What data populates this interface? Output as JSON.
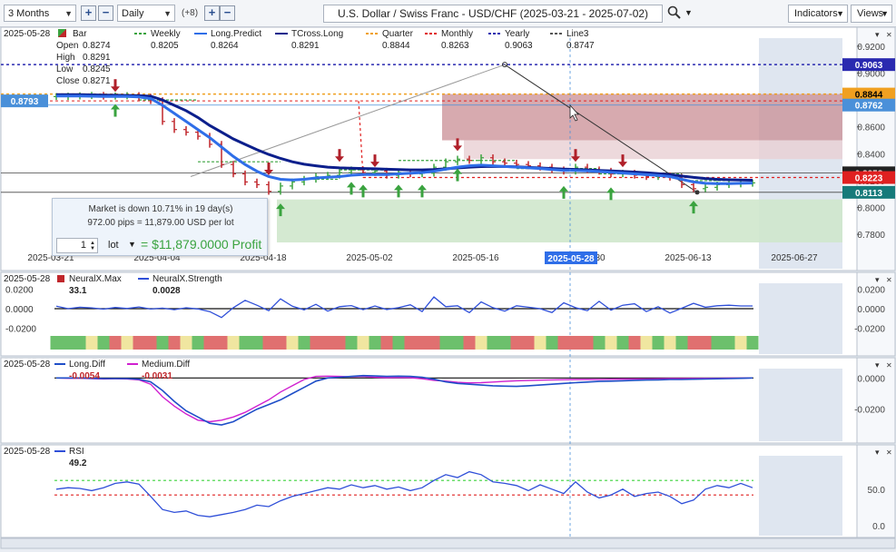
{
  "toolbar": {
    "range": "3 Months",
    "interval": "Daily",
    "overlay_count": "(+8)",
    "title": "U.S. Dollar / Swiss Franc - USD/CHF (2025-03-21 - 2025-07-02)",
    "indicators": "Indicators",
    "views": "Views"
  },
  "main_header": {
    "date": "2025-05-28",
    "legend": [
      {
        "name": "Bar",
        "value": "",
        "color": "#3aa33f"
      },
      {
        "name": "Weekly",
        "value": "0.8205",
        "color": "#3aa33f"
      },
      {
        "name": "Long.Predict",
        "value": "0.8264",
        "color": "#2f6ee8"
      },
      {
        "name": "TCross.Long",
        "value": "0.8291",
        "color": "#0c1f8c"
      },
      {
        "name": "Quarter",
        "value": "0.8844",
        "color": "#f0a020"
      },
      {
        "name": "Monthly",
        "value": "0.8263",
        "color": "#e02020"
      },
      {
        "name": "Yearly",
        "value": "0.9063",
        "color": "#2a2ab0"
      },
      {
        "name": "Line3",
        "value": "0.8747",
        "color": "#555555"
      }
    ],
    "ohlc": [
      {
        "label": "Open",
        "value": "0.8274"
      },
      {
        "label": "High",
        "value": "0.8291"
      },
      {
        "label": "Low",
        "value": "0.8245"
      },
      {
        "label": "Close",
        "value": "0.8271"
      }
    ]
  },
  "info_box": {
    "line1": "Market is down 10.71% in 19 day(s)",
    "line2": "972.00 pips = 11,879.00 USD per lot",
    "quantity": "1",
    "unit": "lot",
    "profit": "= $11,879.0000 Profit"
  },
  "price_tags": [
    {
      "label": "0.9063",
      "value": 0.9063,
      "color": "#2a2ab0",
      "side": "right"
    },
    {
      "label": "0.8844",
      "value": 0.8844,
      "color": "#f0a020",
      "side": "right"
    },
    {
      "label": "0.8762",
      "value": 0.8762,
      "color": "#4a90d9",
      "side": "right"
    },
    {
      "label": "0.8258",
      "value": 0.8258,
      "color": "#222222",
      "side": "right"
    },
    {
      "label": "0.8223",
      "value": 0.8223,
      "color": "#e02020",
      "side": "right"
    },
    {
      "label": "0.8113",
      "value": 0.8113,
      "color": "#167a7a",
      "side": "right"
    },
    {
      "label": "0.8793",
      "value": 0.8793,
      "color": "#4a90d9",
      "side": "left"
    }
  ],
  "cursor_date": "2025-05-28",
  "chart_data": [
    {
      "type": "line",
      "panel": "price",
      "x_ticks": [
        "2025-03-21",
        "2025-04-04",
        "2025-04-18",
        "2025-05-02",
        "2025-05-16",
        "2025-05-30",
        "2025-06-13",
        "2025-06-27"
      ],
      "y_ticks": [
        "0.9200",
        "0.9000",
        "0.8800",
        "0.8600",
        "0.8400",
        "0.8200",
        "0.8000",
        "0.7800"
      ],
      "ylim": [
        0.772,
        0.926
      ],
      "close": [
        0.8825,
        0.8829,
        0.8832,
        0.8835,
        0.8828,
        0.883,
        0.8833,
        0.882,
        0.8795,
        0.864,
        0.858,
        0.856,
        0.853,
        0.847,
        0.832,
        0.825,
        0.819,
        0.817,
        0.812,
        0.816,
        0.819,
        0.821,
        0.823,
        0.824,
        0.826,
        0.828,
        0.826,
        0.827,
        0.824,
        0.826,
        0.825,
        0.8255,
        0.83,
        0.834,
        0.836,
        0.835,
        0.837,
        0.834,
        0.833,
        0.832,
        0.831,
        0.83,
        0.828,
        0.827,
        0.83,
        0.828,
        0.827,
        0.825,
        0.8255,
        0.824,
        0.823,
        0.8235,
        0.8225,
        0.817,
        0.814,
        0.815,
        0.817,
        0.8175,
        0.818,
        0.8183
      ],
      "long_predict": [
        0.883,
        0.883,
        0.883,
        0.8828,
        0.8826,
        0.8826,
        0.8826,
        0.8822,
        0.881,
        0.876,
        0.87,
        0.864,
        0.858,
        0.852,
        0.845,
        0.838,
        0.832,
        0.827,
        0.823,
        0.821,
        0.8205,
        0.821,
        0.822,
        0.8225,
        0.823,
        0.824,
        0.8245,
        0.8245,
        0.8245,
        0.825,
        0.8255,
        0.826,
        0.827,
        0.8285,
        0.83,
        0.831,
        0.8315,
        0.831,
        0.8305,
        0.83,
        0.8295,
        0.829,
        0.8282,
        0.8276,
        0.8275,
        0.8272,
        0.8268,
        0.8262,
        0.8256,
        0.825,
        0.8244,
        0.8238,
        0.823,
        0.821,
        0.819,
        0.818,
        0.8178,
        0.8178,
        0.818,
        0.8182
      ],
      "tcross_long": [
        0.884,
        0.884,
        0.884,
        0.8838,
        0.8836,
        0.8835,
        0.8834,
        0.8832,
        0.8828,
        0.88,
        0.876,
        0.872,
        0.867,
        0.861,
        0.856,
        0.851,
        0.847,
        0.843,
        0.8395,
        0.8365,
        0.834,
        0.8322,
        0.831,
        0.83,
        0.8295,
        0.8292,
        0.829,
        0.8288,
        0.8285,
        0.8282,
        0.828,
        0.828,
        0.8282,
        0.8288,
        0.8294,
        0.83,
        0.8304,
        0.8306,
        0.8305,
        0.8302,
        0.8298,
        0.8294,
        0.829,
        0.8286,
        0.8283,
        0.828,
        0.8276,
        0.8272,
        0.8268,
        0.8264,
        0.8258,
        0.8252,
        0.8244,
        0.8234,
        0.8224,
        0.8216,
        0.821,
        0.8206,
        0.8204,
        0.8203
      ],
      "levels": {
        "yearly": 0.9063,
        "quarter": 0.8844,
        "monthly": 0.8223,
        "line3": 0.8747
      }
    },
    {
      "type": "line",
      "panel": "neuralx",
      "title": "NeuralX.Max",
      "series": [
        {
          "name": "NeuralX.Max",
          "value_label": "33.1"
        },
        {
          "name": "NeuralX.Strength",
          "value_label": "0.0028"
        }
      ],
      "y_ticks": [
        "0.0200",
        "0.0000",
        "-0.0200"
      ],
      "ylim": [
        -0.026,
        0.026
      ],
      "strength": [
        0.0025,
        0.0,
        0.0015,
        0.0008,
        -0.0005,
        0.0012,
        0.0002,
        0.0018,
        -0.0004,
        0.0006,
        -0.001,
        0.0009,
        -0.0003,
        -0.003,
        -0.009,
        0.001,
        0.0085,
        0.0035,
        -0.002,
        0.01,
        0.0025,
        -0.0012,
        0.0045,
        -0.0025,
        0.002,
        0.0032,
        -0.001,
        0.0028,
        -0.0008,
        0.001,
        0.004,
        -0.003,
        0.012,
        0.002,
        0.003,
        -0.004,
        0.007,
        0.001,
        -0.0025,
        0.003,
        0.0015,
        0.0,
        -0.004,
        0.006,
        0.001,
        -0.002,
        0.0075,
        -0.0015,
        0.0035,
        0.005,
        -0.003,
        0.002,
        -0.0045,
        0.0005,
        0.0055,
        0.0015,
        0.003,
        0.0035,
        0.0028,
        0.0028
      ],
      "strip": [
        "g",
        "g",
        "g",
        "y",
        "g",
        "r",
        "y",
        "r",
        "r",
        "g",
        "r",
        "y",
        "g",
        "r",
        "r",
        "y",
        "g",
        "g",
        "r",
        "r",
        "y",
        "g",
        "r",
        "r",
        "r",
        "g",
        "y",
        "g",
        "r",
        "g",
        "r",
        "r",
        "r",
        "g",
        "g",
        "r",
        "y",
        "g",
        "g",
        "r",
        "r",
        "y",
        "g",
        "r",
        "r",
        "r",
        "g",
        "y",
        "g",
        "r",
        "y",
        "g",
        "y",
        "g",
        "r",
        "r",
        "g",
        "g",
        "y",
        "g"
      ]
    },
    {
      "type": "line",
      "panel": "diff",
      "series": [
        {
          "name": "Long.Diff",
          "value_label": "-0.0054",
          "values": [
            0.0,
            0.0,
            0.0,
            -0.0002,
            -0.0004,
            -0.0004,
            -0.0004,
            -0.0008,
            -0.0025,
            -0.008,
            -0.015,
            -0.021,
            -0.025,
            -0.029,
            -0.03,
            -0.028,
            -0.024,
            -0.02,
            -0.017,
            -0.014,
            -0.01,
            -0.006,
            -0.002,
            0.0,
            0.0005,
            0.001,
            0.0015,
            0.0013,
            0.001,
            0.0012,
            0.001,
            0.0005,
            -0.0008,
            -0.0025,
            -0.0035,
            -0.004,
            -0.0045,
            -0.005,
            -0.0052,
            -0.0054,
            -0.005,
            -0.0045,
            -0.004,
            -0.0035,
            -0.003,
            -0.0026,
            -0.0022,
            -0.002,
            -0.0018,
            -0.0015,
            -0.0013,
            -0.0012,
            -0.001,
            -0.001,
            -0.0008,
            -0.0006,
            -0.0005,
            -0.0004,
            -0.0002,
            0.0
          ]
        },
        {
          "name": "Medium.Diff",
          "value_label": "-0.0031",
          "values": [
            0.0,
            -0.0002,
            -0.0001,
            -0.0004,
            -0.0006,
            -0.0005,
            -0.0006,
            -0.0012,
            -0.004,
            -0.012,
            -0.018,
            -0.023,
            -0.027,
            -0.028,
            -0.027,
            -0.025,
            -0.022,
            -0.018,
            -0.014,
            -0.009,
            -0.005,
            -0.001,
            0.001,
            0.0012,
            0.001,
            0.0008,
            0.001,
            0.0005,
            0.0002,
            0.0003,
            0.0002,
            -0.0005,
            -0.0015,
            -0.002,
            -0.0028,
            -0.0031,
            -0.003,
            -0.0026,
            -0.0022,
            -0.0018,
            -0.0016,
            -0.0014,
            -0.0012,
            -0.0011,
            -0.001,
            -0.001,
            -0.0009,
            -0.0008,
            -0.0007,
            -0.0006,
            -0.0006,
            -0.0005,
            -0.0004,
            -0.0004,
            -0.0003,
            -0.0002,
            -0.0002,
            -0.0001,
            -0.0001,
            0.0
          ]
        }
      ],
      "y_ticks": [
        "0.0000",
        "-0.0200"
      ],
      "ylim": [
        -0.037,
        0.006
      ]
    },
    {
      "type": "line",
      "panel": "rsi",
      "series": [
        {
          "name": "RSI",
          "value_label": "49.2",
          "values": [
            50,
            52,
            51,
            48,
            52,
            58,
            60,
            57,
            40,
            22,
            18,
            20,
            14,
            12,
            15,
            18,
            22,
            28,
            26,
            34,
            40,
            44,
            48,
            52,
            50,
            56,
            52,
            55,
            50,
            53,
            48,
            52,
            62,
            70,
            66,
            74,
            70,
            60,
            58,
            55,
            48,
            56,
            50,
            44,
            60,
            46,
            38,
            42,
            50,
            40,
            44,
            46,
            40,
            30,
            35,
            50,
            55,
            52,
            58,
            52
          ]
        }
      ],
      "y_ticks": [
        "50.0",
        "0.0"
      ],
      "ylim": [
        -4,
        96
      ],
      "levels": [
        {
          "value": 62,
          "color": "#3cd43c"
        },
        {
          "value": 42,
          "color": "#e02020"
        }
      ]
    }
  ]
}
